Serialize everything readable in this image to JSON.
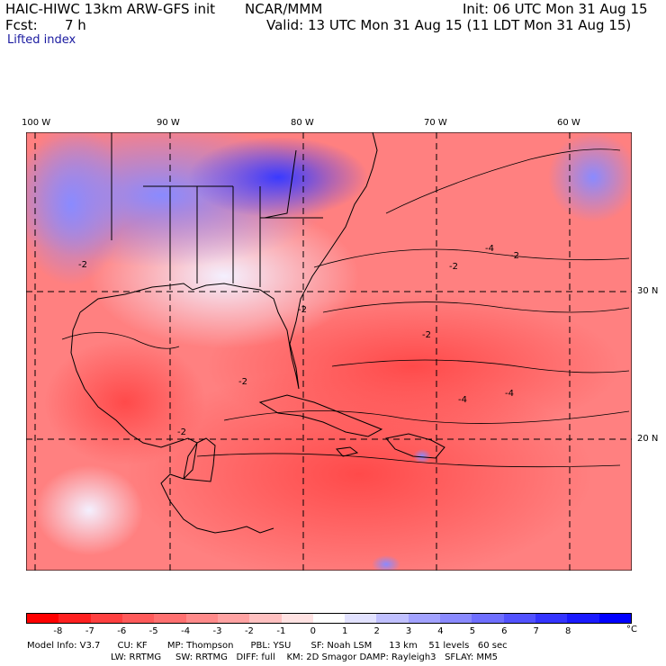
{
  "header": {
    "model_title": "HAIC-HIWC 13km ARW-GFS init",
    "org": "NCAR/MMM",
    "init": "Init: 06 UTC Mon 31 Aug 15",
    "fcst_label": "Fcst:",
    "fcst_value": "7 h",
    "valid": "Valid: 13 UTC Mon 31 Aug 15 (11 LDT Mon 31 Aug 15)",
    "field_name": "Lifted index"
  },
  "map": {
    "lon_labels": [
      "100 W",
      "90 W",
      "80 W",
      "70 W",
      "60 W"
    ],
    "lat_labels": [
      "30 N",
      "20 N"
    ],
    "contour_labels": [
      "-2",
      "-2",
      "-2",
      "-4",
      "-2",
      "-4",
      "-2",
      "-2",
      "-2",
      "-4"
    ]
  },
  "legend": {
    "ticks": [
      "-8",
      "-7",
      "-6",
      "-5",
      "-4",
      "-3",
      "-2",
      "-1",
      "0",
      "1",
      "2",
      "3",
      "4",
      "5",
      "6",
      "7",
      "8"
    ],
    "unit": "°C",
    "colors": [
      "#ff0000",
      "#ff2020",
      "#ff4040",
      "#ff5a5a",
      "#ff7070",
      "#ff8a8a",
      "#ffa2a2",
      "#ffc0c0",
      "#ffe2e2",
      "#ffffff",
      "#e2e2ff",
      "#c0c0ff",
      "#a2a2ff",
      "#8a8aff",
      "#6f6fff",
      "#5252ff",
      "#3434ff",
      "#1a1aff",
      "#0000ff"
    ]
  },
  "model_info": {
    "line1": "Model Info: V3.7      CU: KF       MP: Thompson      PBL: YSU       SF: Noah LSM      13 km    51 levels   60 sec",
    "line2": "LW: RRTMG     SW: RRTMG   DIFF: full    KM: 2D Smagor DAMP: Rayleigh3   SFLAY: MM5"
  }
}
